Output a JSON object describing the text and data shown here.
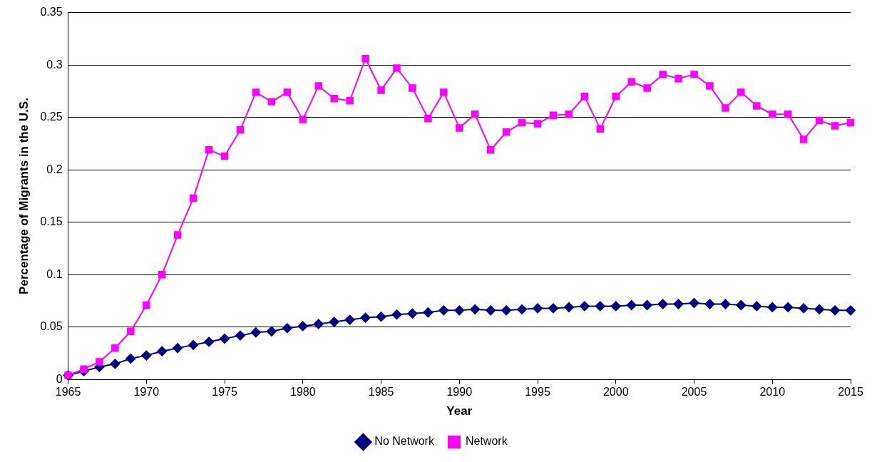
{
  "chart_data": {
    "type": "line",
    "xlabel": "Year",
    "ylabel": "Percentage of Migrants in the U.S.",
    "x": [
      1965,
      1966,
      1967,
      1968,
      1969,
      1970,
      1971,
      1972,
      1973,
      1974,
      1975,
      1976,
      1977,
      1978,
      1979,
      1980,
      1981,
      1982,
      1983,
      1984,
      1985,
      1986,
      1987,
      1988,
      1989,
      1990,
      1991,
      1992,
      1993,
      1994,
      1995,
      1996,
      1997,
      1998,
      1999,
      2000,
      2001,
      2002,
      2003,
      2004,
      2005,
      2006,
      2007,
      2008,
      2009,
      2010,
      2011,
      2012,
      2013,
      2014,
      2015
    ],
    "series": [
      {
        "name": "No Network",
        "color": "#000080",
        "marker": "diamond",
        "values": [
          0.004,
          0.008,
          0.012,
          0.015,
          0.02,
          0.023,
          0.027,
          0.03,
          0.033,
          0.036,
          0.039,
          0.042,
          0.045,
          0.046,
          0.049,
          0.051,
          0.053,
          0.055,
          0.057,
          0.059,
          0.06,
          0.062,
          0.063,
          0.064,
          0.066,
          0.066,
          0.067,
          0.066,
          0.066,
          0.067,
          0.068,
          0.068,
          0.069,
          0.07,
          0.07,
          0.07,
          0.071,
          0.071,
          0.072,
          0.072,
          0.073,
          0.072,
          0.072,
          0.071,
          0.07,
          0.069,
          0.069,
          0.068,
          0.067,
          0.066,
          0.066
        ]
      },
      {
        "name": "Network",
        "color": "#ff00ff",
        "marker": "square",
        "values": [
          0.004,
          0.01,
          0.017,
          0.03,
          0.046,
          0.071,
          0.1,
          0.138,
          0.173,
          0.219,
          0.213,
          0.238,
          0.274,
          0.265,
          0.274,
          0.248,
          0.28,
          0.268,
          0.266,
          0.306,
          0.276,
          0.297,
          0.278,
          0.249,
          0.274,
          0.24,
          0.253,
          0.219,
          0.236,
          0.245,
          0.244,
          0.252,
          0.253,
          0.27,
          0.239,
          0.27,
          0.284,
          0.278,
          0.291,
          0.287,
          0.291,
          0.28,
          0.259,
          0.274,
          0.261,
          0.253,
          0.253,
          0.229,
          0.247,
          0.242,
          0.245
        ]
      }
    ],
    "xlim": [
      1965,
      2015
    ],
    "xticks": [
      1965,
      1970,
      1975,
      1980,
      1985,
      1990,
      1995,
      2000,
      2005,
      2010,
      2015
    ],
    "ylim": [
      0,
      0.35
    ],
    "yticks": [
      0,
      0.05,
      0.1,
      0.15,
      0.2,
      0.25,
      0.3,
      0.35
    ],
    "grid": "y",
    "legend": "bottom",
    "line_style": "solid"
  }
}
